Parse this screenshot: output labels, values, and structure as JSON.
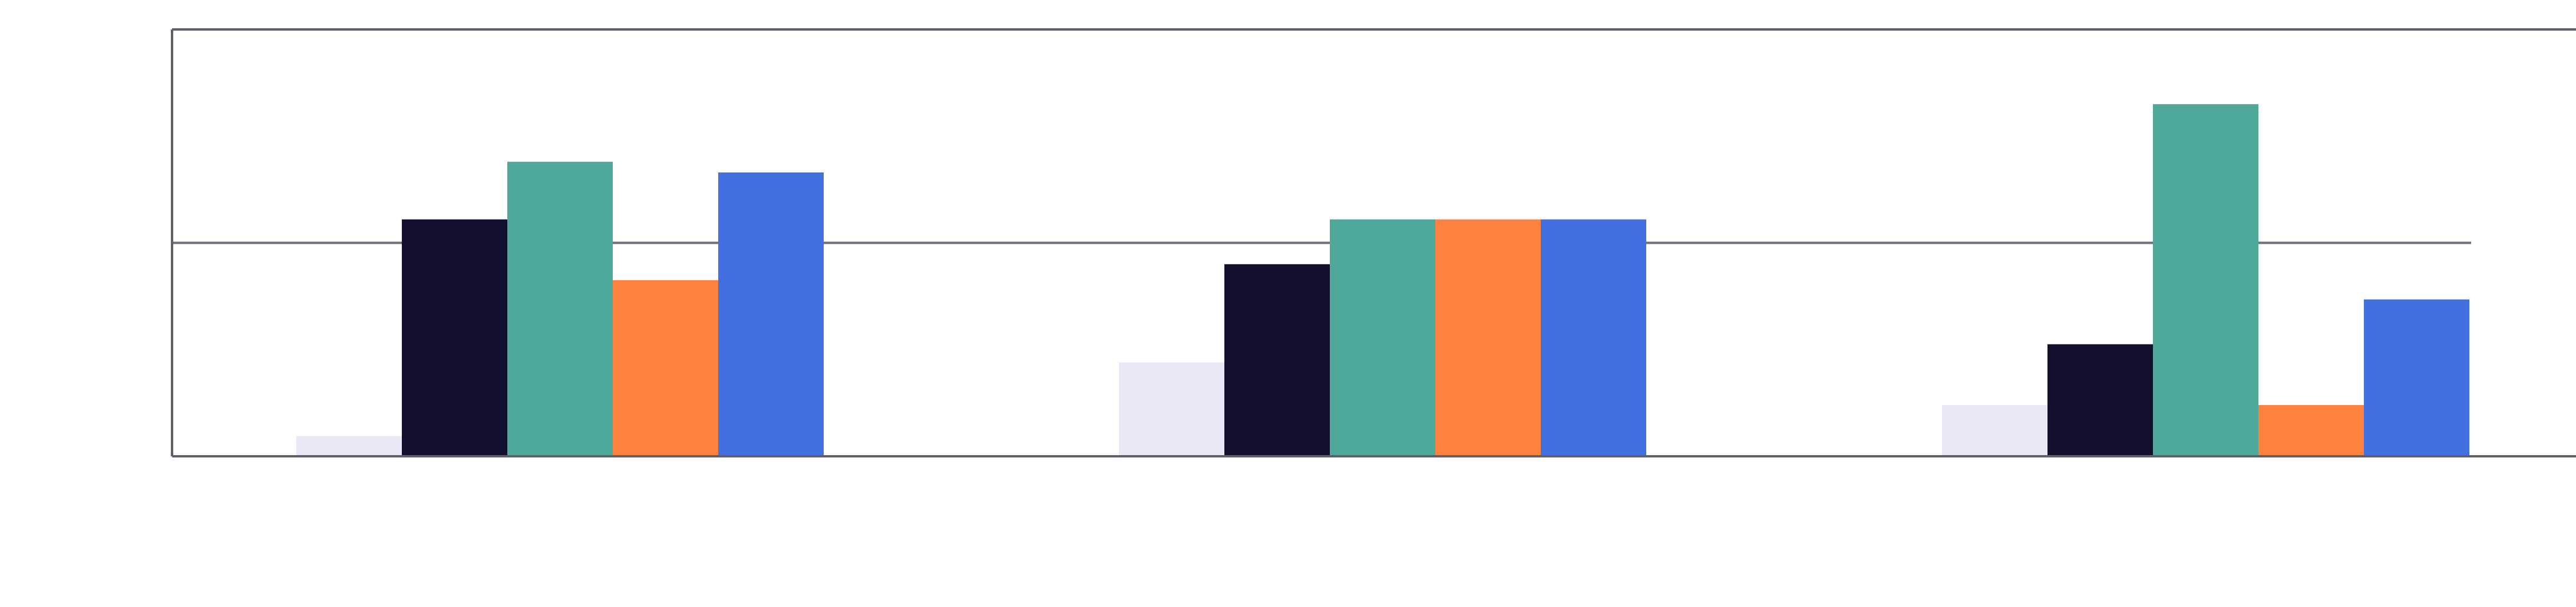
{
  "chart_data": {
    "type": "bar",
    "categories": [
      "",
      "",
      ""
    ],
    "series": [
      {
        "color": "#e9e8f6",
        "values": [
          0.19,
          0.88,
          0.48
        ]
      },
      {
        "color": "#140f2e",
        "values": [
          2.22,
          1.8,
          1.05
        ]
      },
      {
        "color": "#4fa99b",
        "values": [
          2.76,
          2.22,
          3.3
        ]
      },
      {
        "color": "#fd823e",
        "values": [
          1.65,
          2.22,
          0.48
        ]
      },
      {
        "color": "#4270e0",
        "values": [
          2.66,
          2.22,
          1.47
        ]
      }
    ],
    "ylim": [
      0,
      4
    ],
    "gridlines": [
      2
    ],
    "grid": true,
    "legend": "none",
    "title": "",
    "xlabel": "",
    "ylabel": ""
  }
}
